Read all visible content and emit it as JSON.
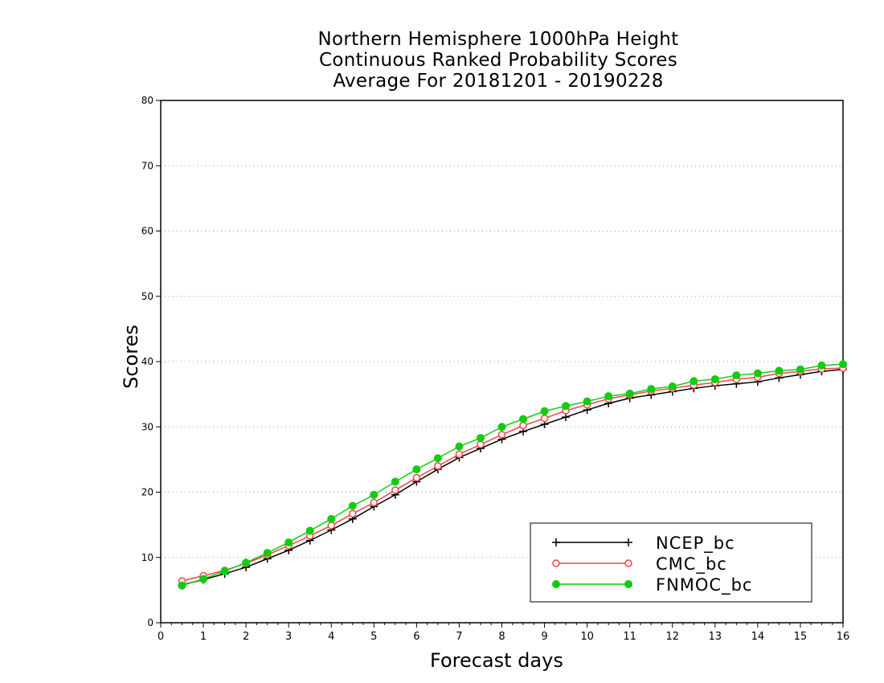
{
  "chart_data": {
    "type": "line",
    "title_lines": [
      "Northern Hemisphere 1000hPa Height",
      "Continuous Ranked Probability Scores",
      "Average For 20181201 - 20190228"
    ],
    "xlabel": "Forecast days",
    "ylabel": "Scores",
    "xlim": [
      0,
      16
    ],
    "ylim": [
      0,
      80
    ],
    "xticks": [
      "0",
      "1",
      "2",
      "3",
      "4",
      "5",
      "6",
      "7",
      "8",
      "9",
      "10",
      "11",
      "12",
      "13",
      "14",
      "15",
      "16"
    ],
    "yticks": [
      "0",
      "10",
      "20",
      "30",
      "40",
      "50",
      "60",
      "70",
      "80"
    ],
    "grid": "horizontal dotted",
    "legend_position": "bottom-right",
    "x": [
      0.5,
      1,
      1.5,
      2,
      2.5,
      3,
      3.5,
      4,
      4.5,
      5,
      5.5,
      6,
      6.5,
      7,
      7.5,
      8,
      8.5,
      9,
      9.5,
      10,
      10.5,
      11,
      11.5,
      12,
      12.5,
      13,
      13.5,
      14,
      14.5,
      15,
      15.5,
      16
    ],
    "series": [
      {
        "name": "NCEP_bc",
        "color": "#000000",
        "marker": "plus",
        "values": [
          5.8,
          6.6,
          7.5,
          8.5,
          9.8,
          11.1,
          12.6,
          14.2,
          15.9,
          17.8,
          19.6,
          21.6,
          23.5,
          25.3,
          26.7,
          28.1,
          29.3,
          30.4,
          31.5,
          32.6,
          33.6,
          34.4,
          34.9,
          35.4,
          35.9,
          36.3,
          36.6,
          36.9,
          37.5,
          38.0,
          38.5,
          38.8
        ]
      },
      {
        "name": "CMC_bc",
        "color": "#ee4444",
        "marker": "open-circle",
        "values": [
          6.4,
          7.2,
          8.0,
          9.1,
          10.4,
          11.8,
          13.3,
          14.9,
          16.7,
          18.4,
          20.3,
          22.2,
          24.0,
          25.8,
          27.3,
          28.8,
          30.2,
          31.3,
          32.5,
          33.4,
          34.3,
          34.9,
          35.5,
          35.9,
          36.4,
          36.8,
          37.3,
          37.6,
          38.2,
          38.5,
          38.9,
          39.0
        ]
      },
      {
        "name": "FNMOC_bc",
        "color": "#11cc11",
        "marker": "filled-circle",
        "values": [
          5.7,
          6.7,
          7.9,
          9.2,
          10.7,
          12.3,
          14.1,
          15.9,
          17.9,
          19.6,
          21.6,
          23.5,
          25.2,
          27.0,
          28.3,
          30.0,
          31.2,
          32.4,
          33.2,
          33.9,
          34.7,
          35.1,
          35.8,
          36.2,
          37.0,
          37.3,
          37.9,
          38.2,
          38.6,
          38.8,
          39.4,
          39.6
        ]
      }
    ]
  }
}
